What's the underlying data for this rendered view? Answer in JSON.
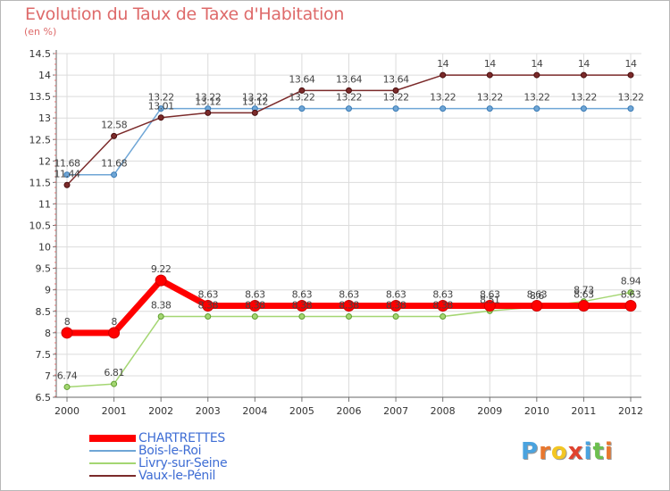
{
  "title": "Evolution du Taux de Taxe d'Habitation",
  "unit_label": "(en %)",
  "logo": {
    "text": "Proxiti",
    "letters": [
      "P",
      "r",
      "o",
      "x",
      "i",
      "t",
      "i"
    ],
    "colors": [
      "#4aa3df",
      "#e8772e",
      "#f3c623",
      "#e0432f",
      "#4aa3df",
      "#6cbf4e",
      "#e8772e"
    ]
  },
  "colors": {
    "CHARTRETTES": "#ff0000",
    "Bois-le-Roi": "#6fa6d6",
    "Livry-sur-Seine": "#a4d672",
    "Vaux-le-Pénil": "#7b2a2a",
    "title": "#de6a6a",
    "legend_text": "#3e6dd4"
  },
  "chart_data": {
    "type": "line",
    "title": "Evolution du Taux de Taxe d'Habitation",
    "ylabel": "(en %)",
    "xlabel": "",
    "x": [
      "2000",
      "2001",
      "2002",
      "2003",
      "2004",
      "2005",
      "2006",
      "2007",
      "2008",
      "2009",
      "2010",
      "2011",
      "2012"
    ],
    "ylim": [
      6.5,
      14.5
    ],
    "yticks": [
      "6.5",
      "7",
      "7.5",
      "8",
      "8.5",
      "9",
      "9.5",
      "10",
      "10.5",
      "11",
      "11.5",
      "12",
      "12.5",
      "13",
      "13.5",
      "14",
      "14.5"
    ],
    "legend_position": "bottom-left",
    "series": [
      {
        "name": "CHARTRETTES",
        "values": [
          8,
          8,
          9.22,
          8.63,
          8.63,
          8.63,
          8.63,
          8.63,
          8.63,
          8.63,
          8.63,
          8.63,
          8.63
        ],
        "labels": [
          "8",
          "8",
          "9.22",
          "8.63",
          "8.63",
          "8.63",
          "8.63",
          "8.63",
          "8.63",
          "8.63",
          "8.63",
          "8.63",
          "8.63"
        ]
      },
      {
        "name": "Bois-le-Roi",
        "values": [
          11.68,
          11.68,
          13.22,
          13.22,
          13.22,
          13.22,
          13.22,
          13.22,
          13.22,
          13.22,
          13.22,
          13.22,
          13.22
        ],
        "labels": [
          "11.68",
          "11.68",
          "13.22",
          "13.22",
          "13.22",
          "13.22",
          "13.22",
          "13.22",
          "13.22",
          "13.22",
          "13.22",
          "13.22",
          "13.22"
        ]
      },
      {
        "name": "Livry-sur-Seine",
        "values": [
          6.74,
          6.81,
          8.38,
          8.38,
          8.38,
          8.38,
          8.38,
          8.38,
          8.38,
          8.51,
          8.6,
          8.73,
          8.94
        ],
        "labels": [
          "6.74",
          "6.81",
          "8.38",
          "8.38",
          "8.38",
          "8.38",
          "8.38",
          "8.38",
          "8.38",
          "8.51",
          "8.6",
          "8.73",
          "8.94"
        ]
      },
      {
        "name": "Vaux-le-Pénil",
        "values": [
          11.44,
          12.58,
          13.01,
          13.12,
          13.12,
          13.64,
          13.64,
          13.64,
          14,
          14,
          14,
          14,
          14
        ],
        "labels": [
          "11.44",
          "12.58",
          "13.01",
          "13.12",
          "13.12",
          "13.64",
          "13.64",
          "13.64",
          "14",
          "14",
          "14",
          "14",
          "14"
        ]
      }
    ]
  }
}
